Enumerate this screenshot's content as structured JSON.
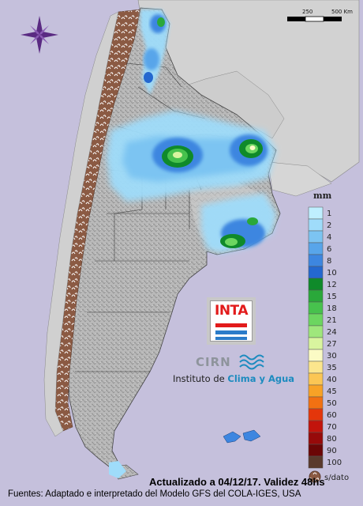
{
  "scale_bar": {
    "labels": [
      "250",
      "500 Km"
    ]
  },
  "legend": {
    "unit": "mm",
    "classes": [
      {
        "label": "1",
        "color": "#bfefff"
      },
      {
        "label": "2",
        "color": "#9fdcfa"
      },
      {
        "label": "4",
        "color": "#7cc4f2"
      },
      {
        "label": "6",
        "color": "#58a5ea"
      },
      {
        "label": "8",
        "color": "#3d86e0"
      },
      {
        "label": "10",
        "color": "#2468cf"
      },
      {
        "label": "12",
        "color": "#0f8a2a"
      },
      {
        "label": "15",
        "color": "#2aa83a"
      },
      {
        "label": "18",
        "color": "#47c24d"
      },
      {
        "label": "21",
        "color": "#6cd660"
      },
      {
        "label": "24",
        "color": "#9fe77c"
      },
      {
        "label": "27",
        "color": "#d9f59f"
      },
      {
        "label": "30",
        "color": "#fbfbc5"
      },
      {
        "label": "35",
        "color": "#fbe68d"
      },
      {
        "label": "40",
        "color": "#fbc654"
      },
      {
        "label": "45",
        "color": "#f8a226"
      },
      {
        "label": "50",
        "color": "#f27112"
      },
      {
        "label": "60",
        "color": "#e4360b"
      },
      {
        "label": "70",
        "color": "#c2140c"
      },
      {
        "label": "80",
        "color": "#970a0a"
      },
      {
        "label": "90",
        "color": "#6b0606"
      },
      {
        "label": "100",
        "color": "#5a3a2c"
      }
    ],
    "no_data": {
      "label": "s/dato",
      "color": "#8b5a43"
    }
  },
  "logos": {
    "inta": "INTA",
    "cirn": "CIRN",
    "institute_prefix": "Instituto de",
    "institute_highlight": "Clima y Agua"
  },
  "footer": {
    "updated": "Actualizado a 04/12/17. Validez 48hs",
    "sources": "Fuentes: Adaptado e interpretado del Modelo GFS del COLA-IGES, USA"
  },
  "icons": {
    "compass": "compass-rose-icon"
  }
}
